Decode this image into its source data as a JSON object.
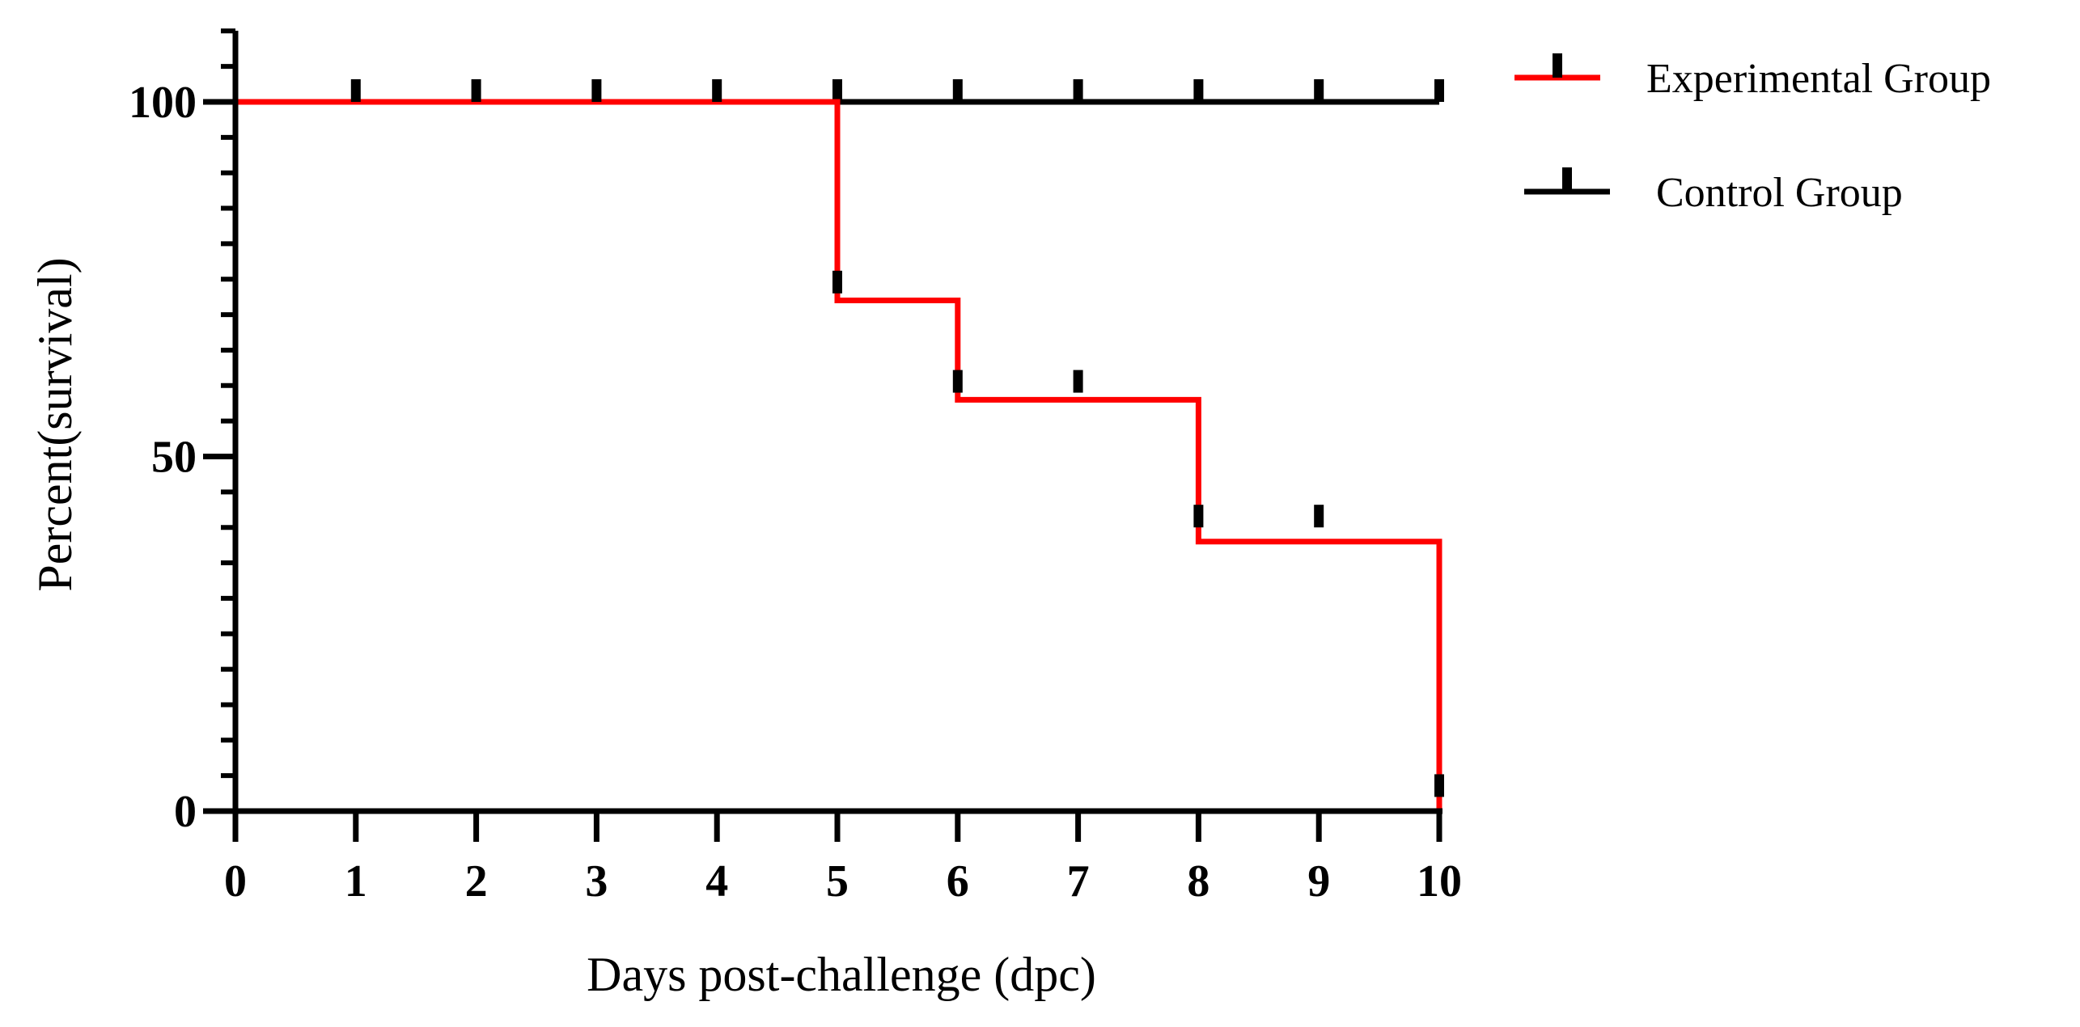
{
  "chart_data": {
    "type": "line",
    "subtype": "step-survival",
    "title": "",
    "xlabel": "Days post-challenge (dpc)",
    "ylabel": "Percent(survival)",
    "xlim": [
      0,
      10
    ],
    "ylim": [
      0,
      100
    ],
    "x_ticks": [
      0,
      1,
      2,
      3,
      4,
      5,
      6,
      7,
      8,
      9,
      10
    ],
    "x_tick_labels": [
      "0",
      "1",
      "2",
      "3",
      "4",
      "5",
      "6",
      "7",
      "8",
      "9",
      "10"
    ],
    "y_ticks": [
      0,
      50,
      100
    ],
    "y_tick_labels": [
      "0",
      "50",
      "100"
    ],
    "y_minor_step": 5,
    "grid": false,
    "legend_position": "top-right",
    "series": [
      {
        "name": "Experimental Group",
        "color": "#ff0000",
        "steps": [
          {
            "x": 0,
            "y": 100
          },
          {
            "x": 5,
            "y": 72
          },
          {
            "x": 6,
            "y": 58
          },
          {
            "x": 8,
            "y": 38
          },
          {
            "x": 10,
            "y": 0
          }
        ],
        "censor_marks": [
          {
            "x": 1,
            "y": 100
          },
          {
            "x": 2,
            "y": 100
          },
          {
            "x": 3,
            "y": 100
          },
          {
            "x": 4,
            "y": 100
          },
          {
            "x": 5,
            "y": 73
          },
          {
            "x": 6,
            "y": 59
          },
          {
            "x": 7,
            "y": 59
          },
          {
            "x": 8,
            "y": 40
          },
          {
            "x": 9,
            "y": 40
          },
          {
            "x": 10,
            "y": 2
          }
        ]
      },
      {
        "name": "Control Group",
        "color": "#000000",
        "steps": [
          {
            "x": 0,
            "y": 100
          },
          {
            "x": 10,
            "y": 100
          }
        ],
        "censor_marks": [
          {
            "x": 5,
            "y": 100
          },
          {
            "x": 6,
            "y": 100
          },
          {
            "x": 7,
            "y": 100
          },
          {
            "x": 8,
            "y": 100
          },
          {
            "x": 9,
            "y": 100
          },
          {
            "x": 10,
            "y": 100
          }
        ]
      }
    ]
  }
}
